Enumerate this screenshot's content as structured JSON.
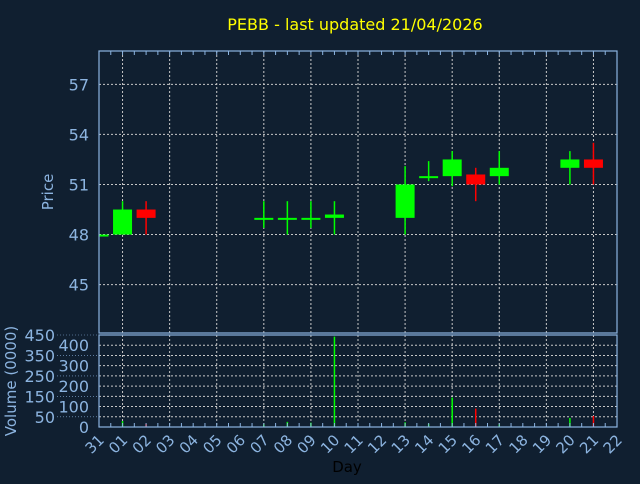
{
  "chart_data": [
    {
      "type": "candlestick",
      "title": "PEBB - last updated 21/04/2026",
      "ylabel": "Price",
      "xlabel": "",
      "ylim": [
        42.1,
        59
      ],
      "yticks": [
        45,
        48,
        51,
        54,
        57
      ],
      "grid": true,
      "categories": [
        "31",
        "01",
        "02",
        "03",
        "04",
        "05",
        "06",
        "07",
        "08",
        "09",
        "10",
        "11",
        "12",
        "13",
        "14",
        "15",
        "16",
        "17",
        "18",
        "19",
        "20",
        "21",
        "22"
      ],
      "candles": [
        {
          "day": "31",
          "open": 48,
          "high": 48,
          "low": 48,
          "close": 48
        },
        {
          "day": "01",
          "open": 48,
          "high": 50,
          "low": 48,
          "close": 49.5
        },
        {
          "day": "02",
          "open": 49.5,
          "high": 50,
          "low": 48,
          "close": 49
        },
        {
          "day": "07",
          "open": 49,
          "high": 50,
          "low": 48.4,
          "close": 49
        },
        {
          "day": "08",
          "open": 49,
          "high": 50,
          "low": 48,
          "close": 49
        },
        {
          "day": "09",
          "open": 49,
          "high": 50,
          "low": 48.4,
          "close": 49
        },
        {
          "day": "10",
          "open": 49,
          "high": 50,
          "low": 48,
          "close": 49.2
        },
        {
          "day": "13",
          "open": 49,
          "high": 52.1,
          "low": 48,
          "close": 51
        },
        {
          "day": "14",
          "open": 51.5,
          "high": 52.4,
          "low": 51.2,
          "close": 51.5
        },
        {
          "day": "15",
          "open": 51.5,
          "high": 53,
          "low": 50.9,
          "close": 52.5
        },
        {
          "day": "16",
          "open": 51.6,
          "high": 52,
          "low": 50,
          "close": 51
        },
        {
          "day": "17",
          "open": 51.5,
          "high": 53,
          "low": 51,
          "close": 52
        },
        {
          "day": "20",
          "open": 52,
          "high": 53,
          "low": 51,
          "close": 52.5
        },
        {
          "day": "21",
          "open": 52.5,
          "high": 53.5,
          "low": 51,
          "close": 52
        }
      ],
      "colors": {
        "up": "#00ff00",
        "down": "#ff0000"
      }
    },
    {
      "type": "bar",
      "ylabel": "Volume (0000)",
      "xlabel": "Day",
      "ylim": [
        0,
        450
      ],
      "yticks": [
        0,
        50,
        100,
        150,
        200,
        250,
        300,
        350,
        400,
        450
      ],
      "grid": true,
      "categories": [
        "31",
        "01",
        "02",
        "03",
        "04",
        "05",
        "06",
        "07",
        "08",
        "09",
        "10",
        "11",
        "12",
        "13",
        "14",
        "15",
        "16",
        "17",
        "18",
        "19",
        "20",
        "21",
        "22"
      ],
      "volumes": [
        {
          "day": "01",
          "value": 29,
          "direction": "up"
        },
        {
          "day": "02",
          "value": 15,
          "direction": "down"
        },
        {
          "day": "07",
          "value": 13,
          "direction": "up"
        },
        {
          "day": "08",
          "value": 25,
          "direction": "up"
        },
        {
          "day": "09",
          "value": 21,
          "direction": "up"
        },
        {
          "day": "10",
          "value": 442,
          "direction": "up"
        },
        {
          "day": "13",
          "value": 23,
          "direction": "up"
        },
        {
          "day": "14",
          "value": 16,
          "direction": "up"
        },
        {
          "day": "15",
          "value": 144,
          "direction": "up"
        },
        {
          "day": "16",
          "value": 90,
          "direction": "down"
        },
        {
          "day": "17",
          "value": 13,
          "direction": "up"
        },
        {
          "day": "20",
          "value": 44,
          "direction": "up"
        },
        {
          "day": "21",
          "value": 54,
          "direction": "down"
        }
      ]
    }
  ],
  "colors": {
    "background": "#101f30",
    "axis": "#8cb4e0",
    "grid": "#c8c8c8",
    "title": "#ffff00",
    "xlabel": "#000000"
  }
}
